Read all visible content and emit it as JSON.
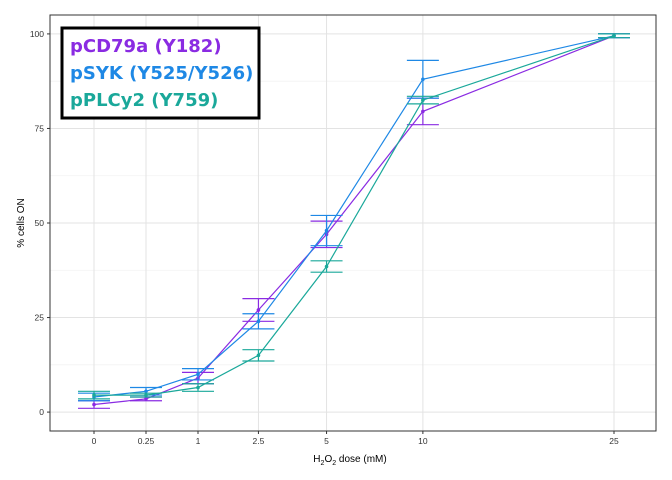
{
  "chart_data": {
    "type": "line",
    "title": "",
    "xlabel": "H2O2 dose (mM)",
    "xlabel_parts": {
      "base1": "H",
      "sub1": "2",
      "base2": "O",
      "sub2": "2",
      "rest": " dose (mM)"
    },
    "ylabel": "% cells ON",
    "x_categories": [
      "0",
      "0.25",
      "1",
      "2.5",
      "5",
      "10",
      "25"
    ],
    "x_scale": "sqrt",
    "ylim": [
      -5,
      105
    ],
    "y_ticks": [
      0,
      25,
      50,
      75,
      100
    ],
    "grid": true,
    "legend_position": "top-left",
    "series": [
      {
        "name": "pCD79a (Y182)",
        "color": "#8a2be2",
        "values": [
          2,
          3.5,
          9,
          27,
          47,
          79.5,
          99.5
        ],
        "errors": [
          1,
          0.5,
          1.5,
          3,
          3.5,
          3.5,
          0.5
        ]
      },
      {
        "name": "pSYK (Y525/Y526)",
        "color": "#1e88e5",
        "values": [
          4,
          5.5,
          10,
          24,
          48,
          88,
          99.5
        ],
        "errors": [
          1,
          1,
          1.5,
          2,
          4,
          5,
          0.5
        ]
      },
      {
        "name": "pPLCy2 (Y759)",
        "color": "#1aa89a",
        "values": [
          4.5,
          4.5,
          6.5,
          15,
          38.5,
          82.5,
          99.5
        ],
        "errors": [
          1,
          0.5,
          1,
          1.5,
          1.5,
          1,
          0.5
        ]
      }
    ]
  }
}
